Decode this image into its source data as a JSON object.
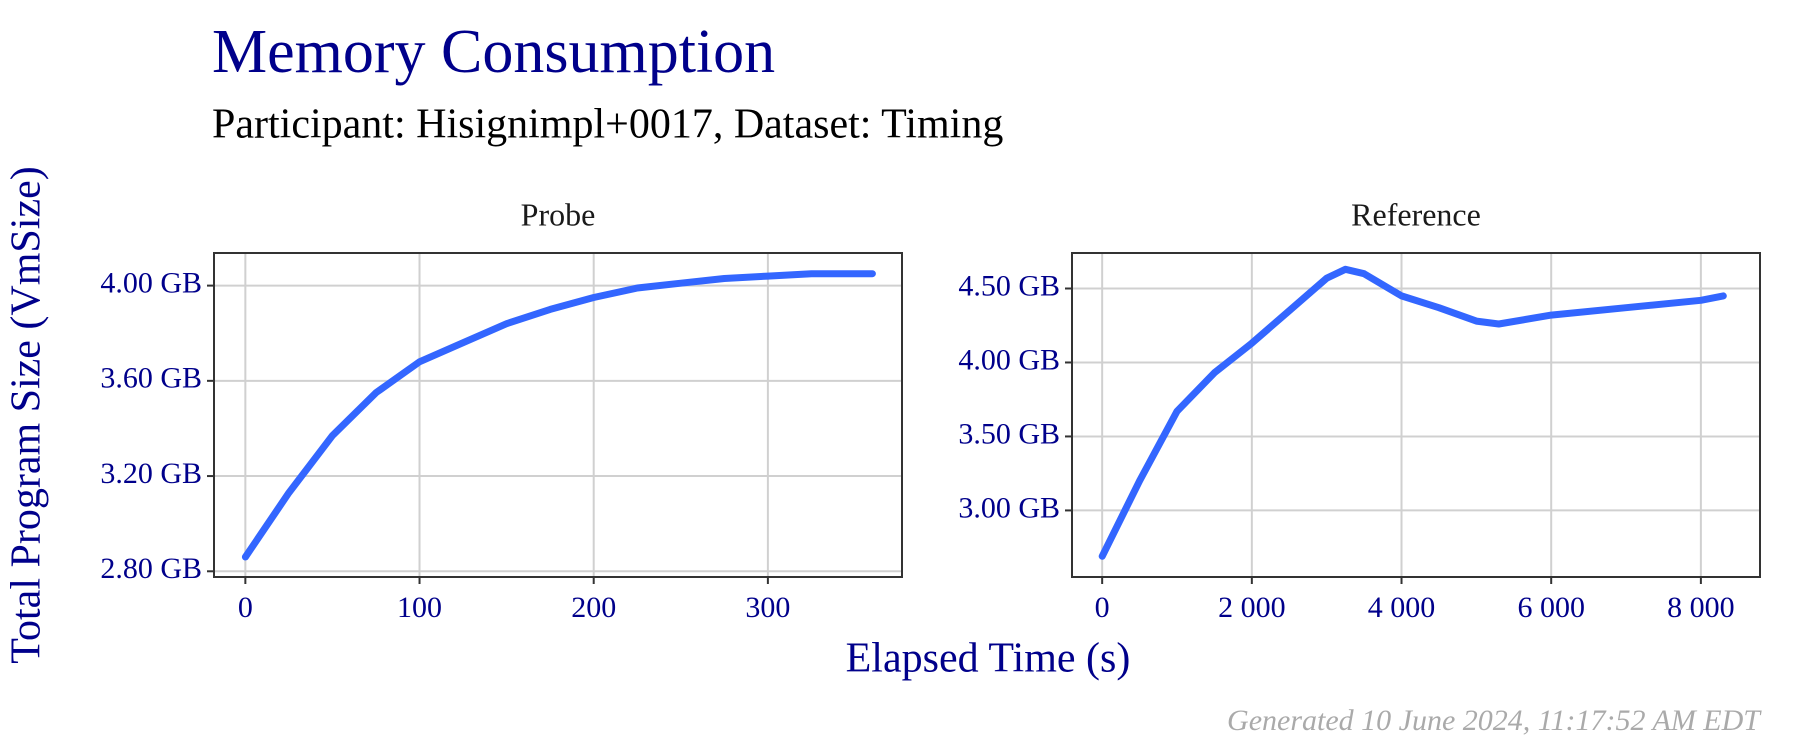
{
  "title": "Memory Consumption",
  "subtitle": "Participant: Hisignimpl+0017, Dataset: Timing",
  "x_label": "Elapsed Time (s)",
  "y_label": "Total Program Size (VmSize)",
  "caption": "Generated 10 June 2024, 11:17:52 AM EDT",
  "chart_data": [
    {
      "type": "line",
      "title": "Probe",
      "color": "#3366ff",
      "grid": true,
      "x": [
        0,
        25,
        50,
        75,
        100,
        125,
        150,
        175,
        200,
        225,
        250,
        275,
        300,
        325,
        360
      ],
      "values": [
        2.86,
        3.13,
        3.37,
        3.55,
        3.68,
        3.76,
        3.84,
        3.9,
        3.95,
        3.99,
        4.01,
        4.03,
        4.04,
        4.05,
        4.05
      ],
      "xlim": [
        -18,
        377
      ],
      "xticks": [
        0,
        100,
        200,
        300
      ],
      "ylim": [
        2.776,
        4.137
      ],
      "yticks": [
        {
          "value": 2.8,
          "label": "2.80 GB"
        },
        {
          "value": 3.2,
          "label": "3.20 GB"
        },
        {
          "value": 3.6,
          "label": "3.60 GB"
        },
        {
          "value": 4.0,
          "label": "4.00 GB"
        }
      ]
    },
    {
      "type": "line",
      "title": "Reference",
      "color": "#3366ff",
      "grid": true,
      "x": [
        0,
        500,
        1000,
        1500,
        2000,
        2500,
        3000,
        3250,
        3500,
        4000,
        4500,
        5000,
        5300,
        6000,
        7000,
        8000,
        8300
      ],
      "values": [
        2.69,
        3.2,
        3.67,
        3.93,
        4.13,
        4.35,
        4.57,
        4.63,
        4.6,
        4.45,
        4.37,
        4.28,
        4.26,
        4.32,
        4.37,
        4.42,
        4.45
      ],
      "xlim": [
        -403,
        8790
      ],
      "xticks": [
        0,
        {
          "value": 2000,
          "label": "2 000"
        },
        {
          "value": 4000,
          "label": "4 000"
        },
        {
          "value": 6000,
          "label": "6 000"
        },
        {
          "value": 8000,
          "label": "8 000"
        }
      ],
      "ylim": [
        2.55,
        4.74
      ],
      "yticks": [
        {
          "value": 3.0,
          "label": "3.00 GB"
        },
        {
          "value": 3.5,
          "label": "3.50 GB"
        },
        {
          "value": 4.0,
          "label": "4.00 GB"
        },
        {
          "value": 4.5,
          "label": "4.50 GB"
        }
      ]
    }
  ]
}
